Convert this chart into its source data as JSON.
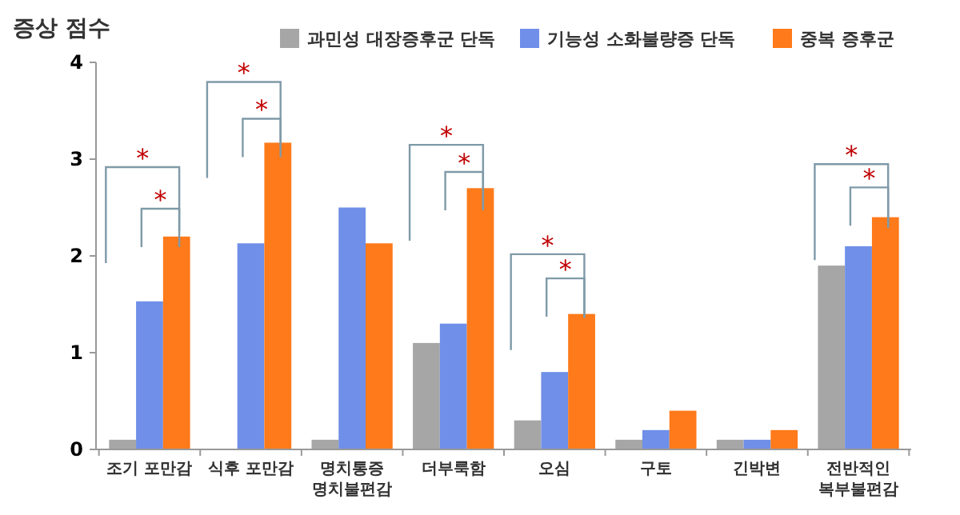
{
  "chart_data": {
    "type": "bar",
    "title": "증상 점수",
    "categories": [
      "조기 포만감",
      "식후 포만감",
      "명치통증\n명치불편감",
      "더부룩함",
      "오심",
      "구토",
      "긴박변",
      "전반적인\n복부불편감"
    ],
    "series": [
      {
        "name": "과민성 대장증후군 단독",
        "color": "#a6a6a6",
        "values": [
          0.1,
          0,
          0.1,
          1.1,
          0.3,
          0.1,
          0.1,
          1.9
        ]
      },
      {
        "name": "기능성 소화불량증 단독",
        "color": "#6f8fe8",
        "values": [
          1.53,
          2.13,
          2.5,
          1.3,
          0.8,
          0.2,
          0.1,
          2.1
        ]
      },
      {
        "name": "중복 증후군",
        "color": "#ff7a1a",
        "values": [
          2.2,
          3.17,
          2.13,
          2.7,
          1.4,
          0.4,
          0.2,
          2.4
        ]
      }
    ],
    "ylim": [
      0,
      4
    ],
    "yticks": [
      0,
      1,
      2,
      3,
      4
    ],
    "legend": "top right",
    "annotations": [
      "*",
      "*",
      "*",
      "*",
      "*",
      "*",
      "*",
      "*",
      "*",
      "*"
    ]
  }
}
